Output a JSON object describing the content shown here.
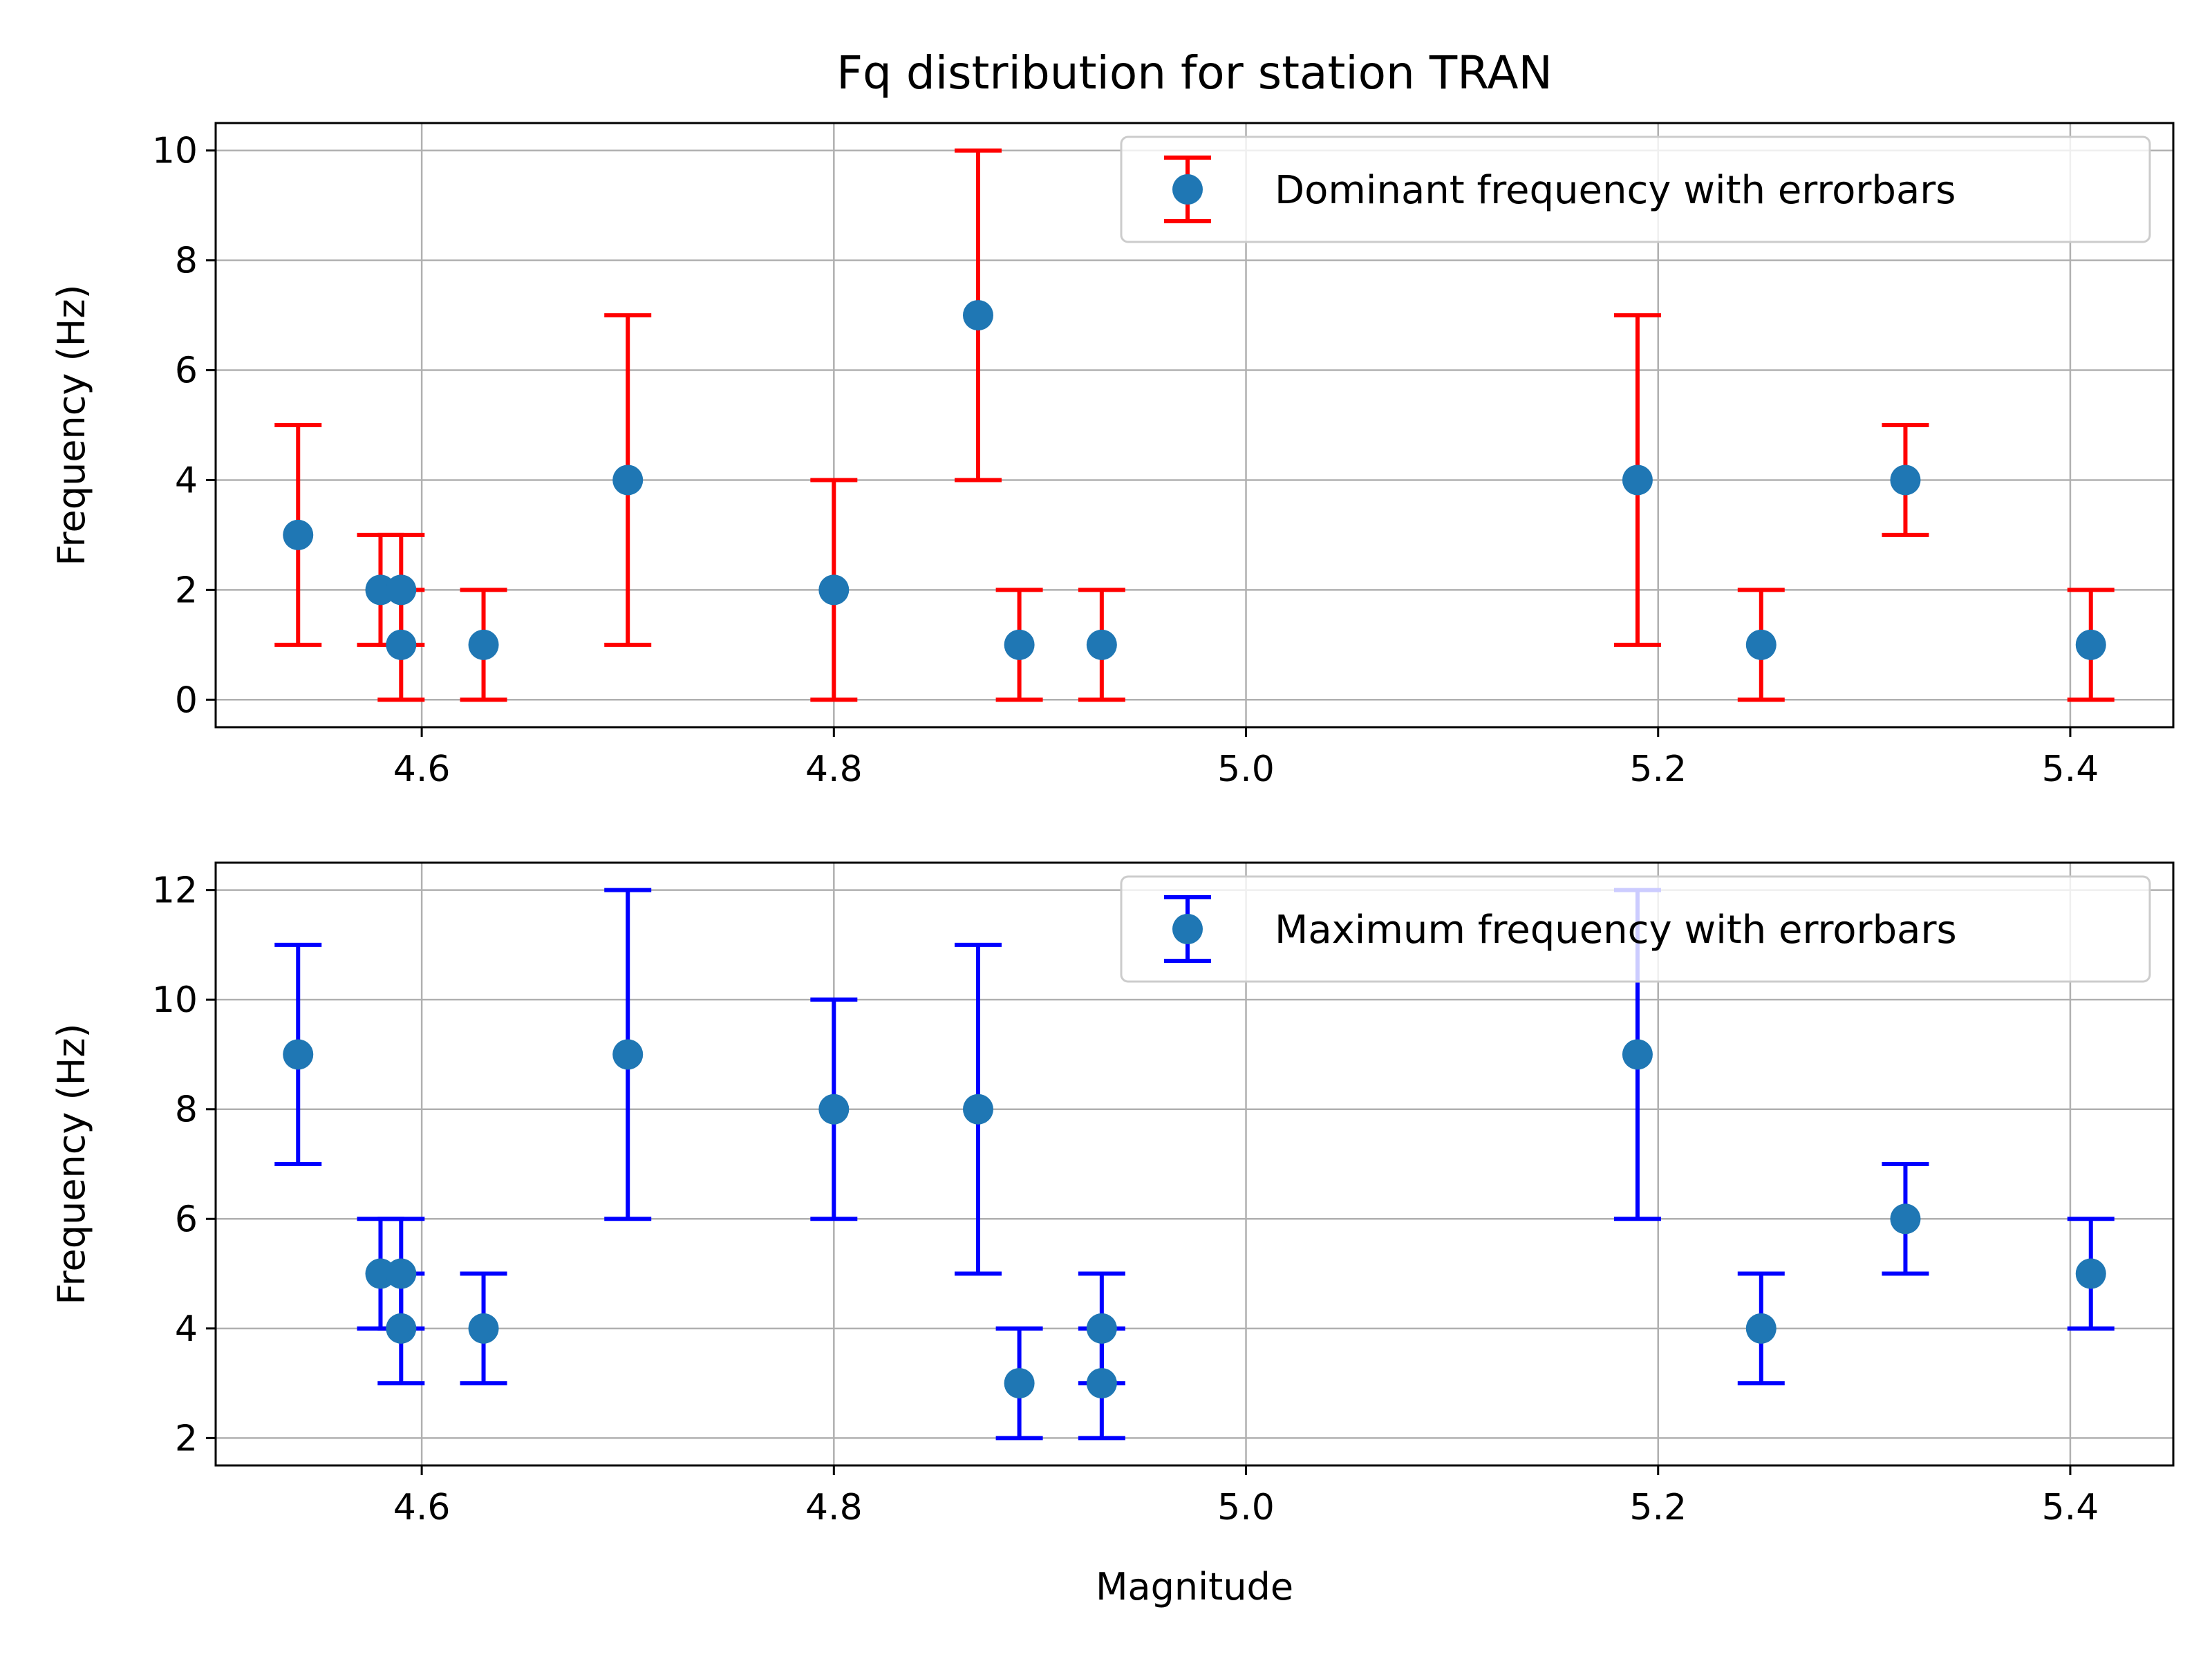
{
  "chart_data": [
    {
      "type": "scatter",
      "title": "Fq distribution for station TRAN",
      "xlabel": "",
      "ylabel": "Frequency (Hz)",
      "xlim": [
        4.5,
        5.45
      ],
      "ylim": [
        -0.5,
        10.5
      ],
      "xticks": [
        4.6,
        4.8,
        5.0,
        5.2,
        5.4
      ],
      "xtick_labels": [
        "4.6",
        "4.8",
        "5.0",
        "5.2",
        "5.4"
      ],
      "yticks": [
        0,
        2,
        4,
        6,
        8,
        10
      ],
      "ytick_labels": [
        "0",
        "2",
        "4",
        "6",
        "8",
        "10"
      ],
      "grid": true,
      "legend_position": "top-right",
      "marker_color": "#1f77b4",
      "errorbar_color": "#ff0000",
      "series": [
        {
          "name": "Dominant frequency with errorbars",
          "points": [
            {
              "x": 4.54,
              "y": 3,
              "low": 1,
              "high": 5
            },
            {
              "x": 4.58,
              "y": 2,
              "low": 1,
              "high": 3
            },
            {
              "x": 4.59,
              "y": 2,
              "low": 1,
              "high": 3
            },
            {
              "x": 4.59,
              "y": 1,
              "low": 0,
              "high": 2
            },
            {
              "x": 4.63,
              "y": 1,
              "low": 0,
              "high": 2
            },
            {
              "x": 4.7,
              "y": 4,
              "low": 1,
              "high": 7
            },
            {
              "x": 4.8,
              "y": 2,
              "low": 0,
              "high": 4
            },
            {
              "x": 4.87,
              "y": 7,
              "low": 4,
              "high": 10
            },
            {
              "x": 4.89,
              "y": 1,
              "low": 0,
              "high": 2
            },
            {
              "x": 4.93,
              "y": 1,
              "low": 0,
              "high": 2
            },
            {
              "x": 5.19,
              "y": 4,
              "low": 1,
              "high": 7
            },
            {
              "x": 5.25,
              "y": 1,
              "low": 0,
              "high": 2
            },
            {
              "x": 5.32,
              "y": 4,
              "low": 3,
              "high": 5
            },
            {
              "x": 5.41,
              "y": 1,
              "low": 0,
              "high": 2
            }
          ]
        }
      ]
    },
    {
      "type": "scatter",
      "title": "",
      "xlabel": "Magnitude",
      "ylabel": "Frequency (Hz)",
      "xlim": [
        4.5,
        5.45
      ],
      "ylim": [
        1.5,
        12.5
      ],
      "xticks": [
        4.6,
        4.8,
        5.0,
        5.2,
        5.4
      ],
      "xtick_labels": [
        "4.6",
        "4.8",
        "5.0",
        "5.2",
        "5.4"
      ],
      "yticks": [
        2,
        4,
        6,
        8,
        10,
        12
      ],
      "ytick_labels": [
        "2",
        "4",
        "6",
        "8",
        "10",
        "12"
      ],
      "grid": true,
      "legend_position": "top-right",
      "marker_color": "#1f77b4",
      "errorbar_color": "#0000ff",
      "series": [
        {
          "name": "Maximum frequency with errorbars",
          "points": [
            {
              "x": 4.54,
              "y": 9,
              "low": 7,
              "high": 11
            },
            {
              "x": 4.58,
              "y": 5,
              "low": 4,
              "high": 6
            },
            {
              "x": 4.59,
              "y": 5,
              "low": 4,
              "high": 6
            },
            {
              "x": 4.59,
              "y": 4,
              "low": 3,
              "high": 5
            },
            {
              "x": 4.63,
              "y": 4,
              "low": 3,
              "high": 5
            },
            {
              "x": 4.7,
              "y": 9,
              "low": 6,
              "high": 12
            },
            {
              "x": 4.8,
              "y": 8,
              "low": 6,
              "high": 10
            },
            {
              "x": 4.87,
              "y": 8,
              "low": 5,
              "high": 11
            },
            {
              "x": 4.89,
              "y": 3,
              "low": 2,
              "high": 4
            },
            {
              "x": 4.93,
              "y": 4,
              "low": 3,
              "high": 5
            },
            {
              "x": 4.93,
              "y": 3,
              "low": 2,
              "high": 4
            },
            {
              "x": 5.19,
              "y": 9,
              "low": 6,
              "high": 12
            },
            {
              "x": 5.25,
              "y": 4,
              "low": 3,
              "high": 5
            },
            {
              "x": 5.32,
              "y": 6,
              "low": 5,
              "high": 7
            },
            {
              "x": 5.41,
              "y": 5,
              "low": 4,
              "high": 6
            }
          ]
        }
      ]
    }
  ]
}
